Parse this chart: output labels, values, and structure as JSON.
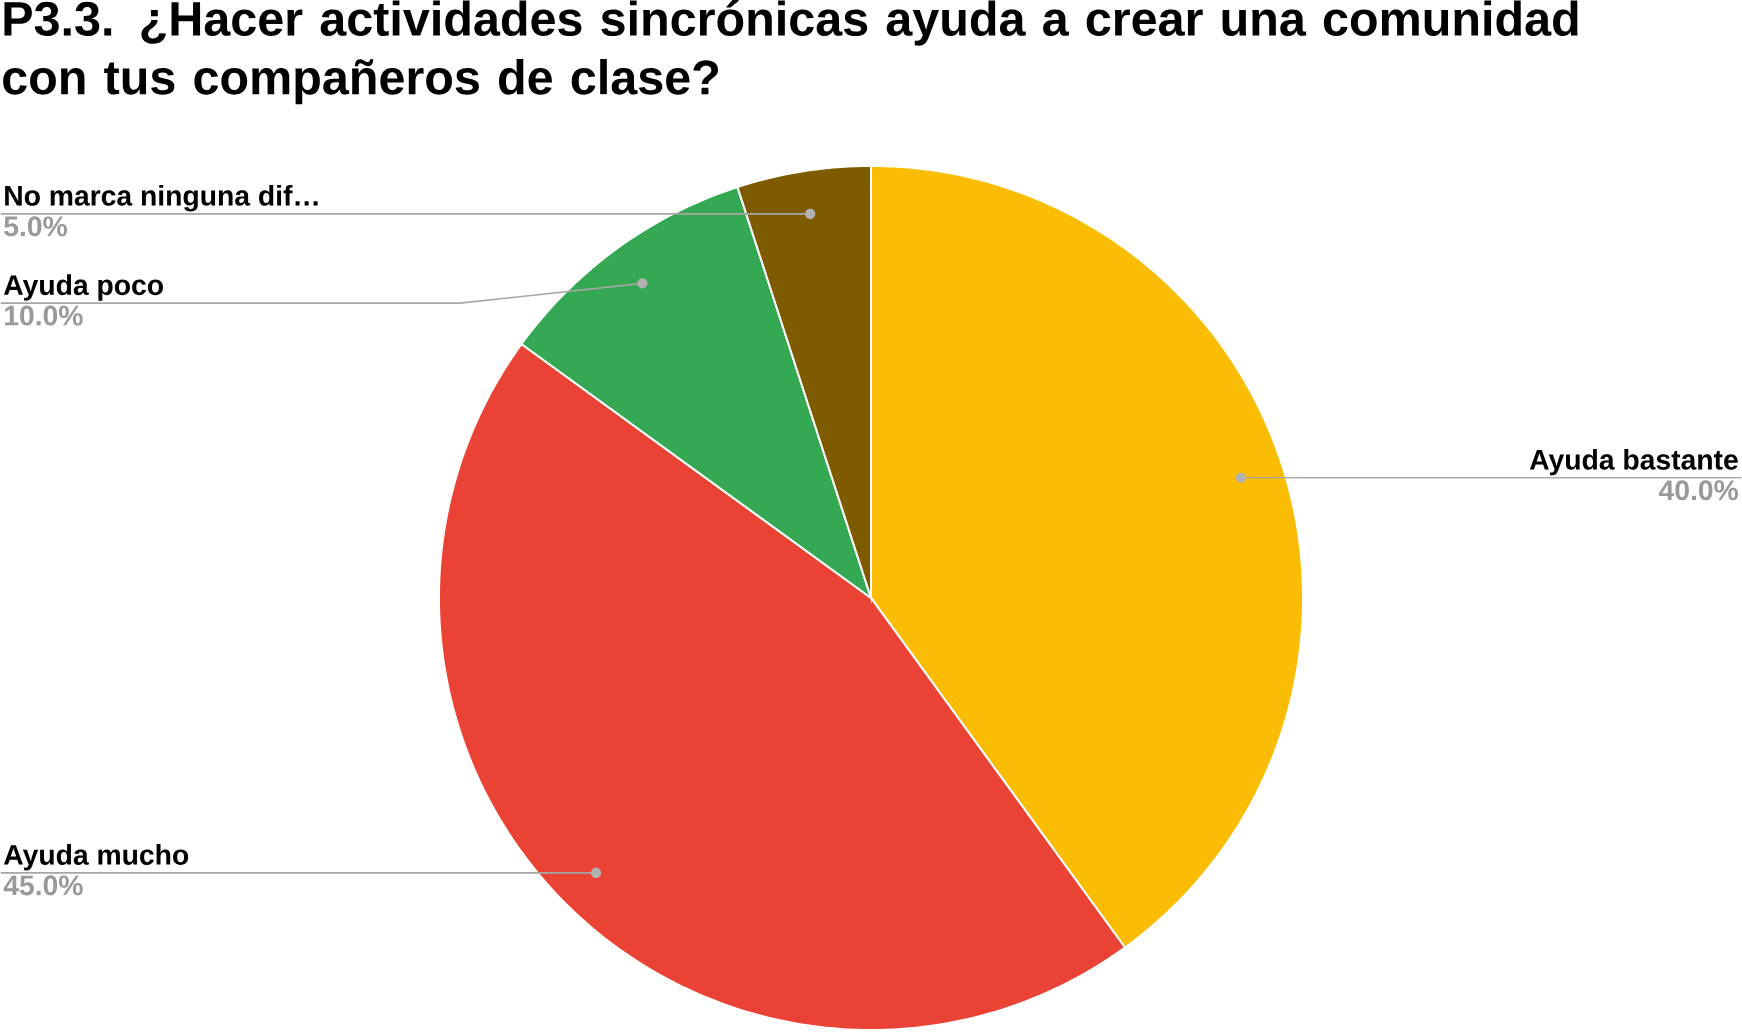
{
  "chart_data": {
    "type": "pie",
    "title": "P3.3. ¿Hacer actividades sincrónicas ayuda a crear una comunidad con tus compañeros de clase?",
    "categories": [
      "Ayuda bastante",
      "Ayuda mucho",
      "Ayuda poco",
      "No marca ninguna dif…"
    ],
    "values": [
      40,
      45,
      10,
      5
    ],
    "colors": [
      "#fbbc04",
      "#ea4335",
      "#34a853",
      "#7f5b00"
    ],
    "value_labels": [
      "40.0%",
      "45.0%",
      "10.0%",
      "5.0%"
    ]
  }
}
